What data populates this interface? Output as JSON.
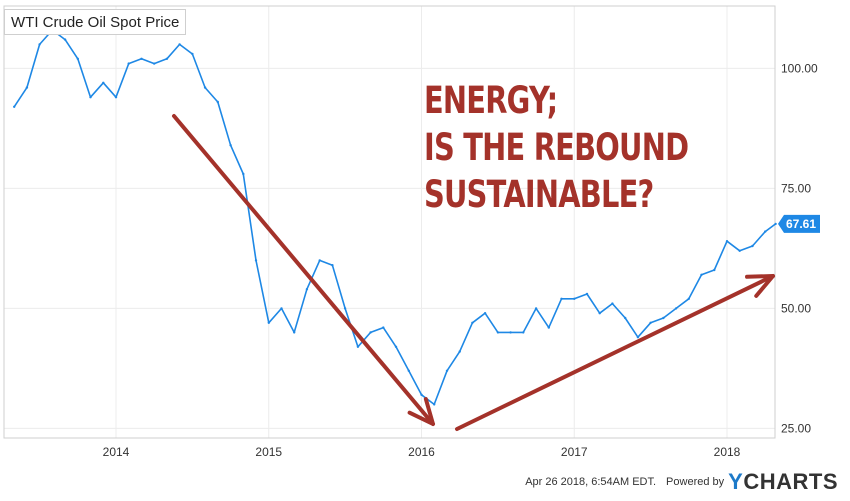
{
  "chart_data": {
    "type": "line",
    "title": "WTI Crude Oil Spot Price",
    "headline": [
      "ENERGY;",
      "IS THE REBOUND",
      "SUSTAINABLE?"
    ],
    "x_ticks": [
      "2014",
      "2015",
      "2016",
      "2017",
      "2018"
    ],
    "y_ticks": [
      "25.00",
      "50.00",
      "75.00",
      "100.00"
    ],
    "xlim": [
      "2013-05",
      "2018-04-26"
    ],
    "ylim": [
      23,
      113
    ],
    "last_value": "67.61",
    "series": [
      {
        "color": "#1e88e5",
        "points": [
          [
            "2013-05-01",
            92
          ],
          [
            "2013-06-01",
            96
          ],
          [
            "2013-07-01",
            105
          ],
          [
            "2013-08-01",
            108
          ],
          [
            "2013-09-01",
            106
          ],
          [
            "2013-10-01",
            102
          ],
          [
            "2013-11-01",
            94
          ],
          [
            "2013-12-01",
            97
          ],
          [
            "2014-01-01",
            94
          ],
          [
            "2014-02-01",
            101
          ],
          [
            "2014-03-01",
            102
          ],
          [
            "2014-04-01",
            101
          ],
          [
            "2014-05-01",
            102
          ],
          [
            "2014-06-01",
            105
          ],
          [
            "2014-07-01",
            103
          ],
          [
            "2014-08-01",
            96
          ],
          [
            "2014-09-01",
            93
          ],
          [
            "2014-10-01",
            84
          ],
          [
            "2014-11-01",
            78
          ],
          [
            "2014-12-01",
            60
          ],
          [
            "2015-01-01",
            47
          ],
          [
            "2015-02-01",
            50
          ],
          [
            "2015-03-01",
            45
          ],
          [
            "2015-04-01",
            54
          ],
          [
            "2015-05-01",
            60
          ],
          [
            "2015-06-01",
            59
          ],
          [
            "2015-07-01",
            50
          ],
          [
            "2015-08-01",
            42
          ],
          [
            "2015-09-01",
            45
          ],
          [
            "2015-10-01",
            46
          ],
          [
            "2015-11-01",
            42
          ],
          [
            "2015-12-01",
            37
          ],
          [
            "2016-01-01",
            32
          ],
          [
            "2016-02-01",
            30
          ],
          [
            "2016-03-01",
            37
          ],
          [
            "2016-04-01",
            41
          ],
          [
            "2016-05-01",
            47
          ],
          [
            "2016-06-01",
            49
          ],
          [
            "2016-07-01",
            45
          ],
          [
            "2016-08-01",
            45
          ],
          [
            "2016-09-01",
            45
          ],
          [
            "2016-10-01",
            50
          ],
          [
            "2016-11-01",
            46
          ],
          [
            "2016-12-01",
            52
          ],
          [
            "2017-01-01",
            52
          ],
          [
            "2017-02-01",
            53
          ],
          [
            "2017-03-01",
            49
          ],
          [
            "2017-04-01",
            51
          ],
          [
            "2017-05-01",
            48
          ],
          [
            "2017-06-01",
            44
          ],
          [
            "2017-07-01",
            47
          ],
          [
            "2017-08-01",
            48
          ],
          [
            "2017-09-01",
            50
          ],
          [
            "2017-10-01",
            52
          ],
          [
            "2017-11-01",
            57
          ],
          [
            "2017-12-01",
            58
          ],
          [
            "2018-01-01",
            64
          ],
          [
            "2018-02-01",
            62
          ],
          [
            "2018-03-01",
            63
          ],
          [
            "2018-04-01",
            66
          ],
          [
            "2018-04-26",
            67.61
          ]
        ]
      }
    ]
  },
  "footer": {
    "timestamp": "Apr 26 2018, 6:54AM EDT.",
    "powered_by": "Powered by",
    "brand_prefix": "Y",
    "brand_rest": "CHARTS"
  }
}
